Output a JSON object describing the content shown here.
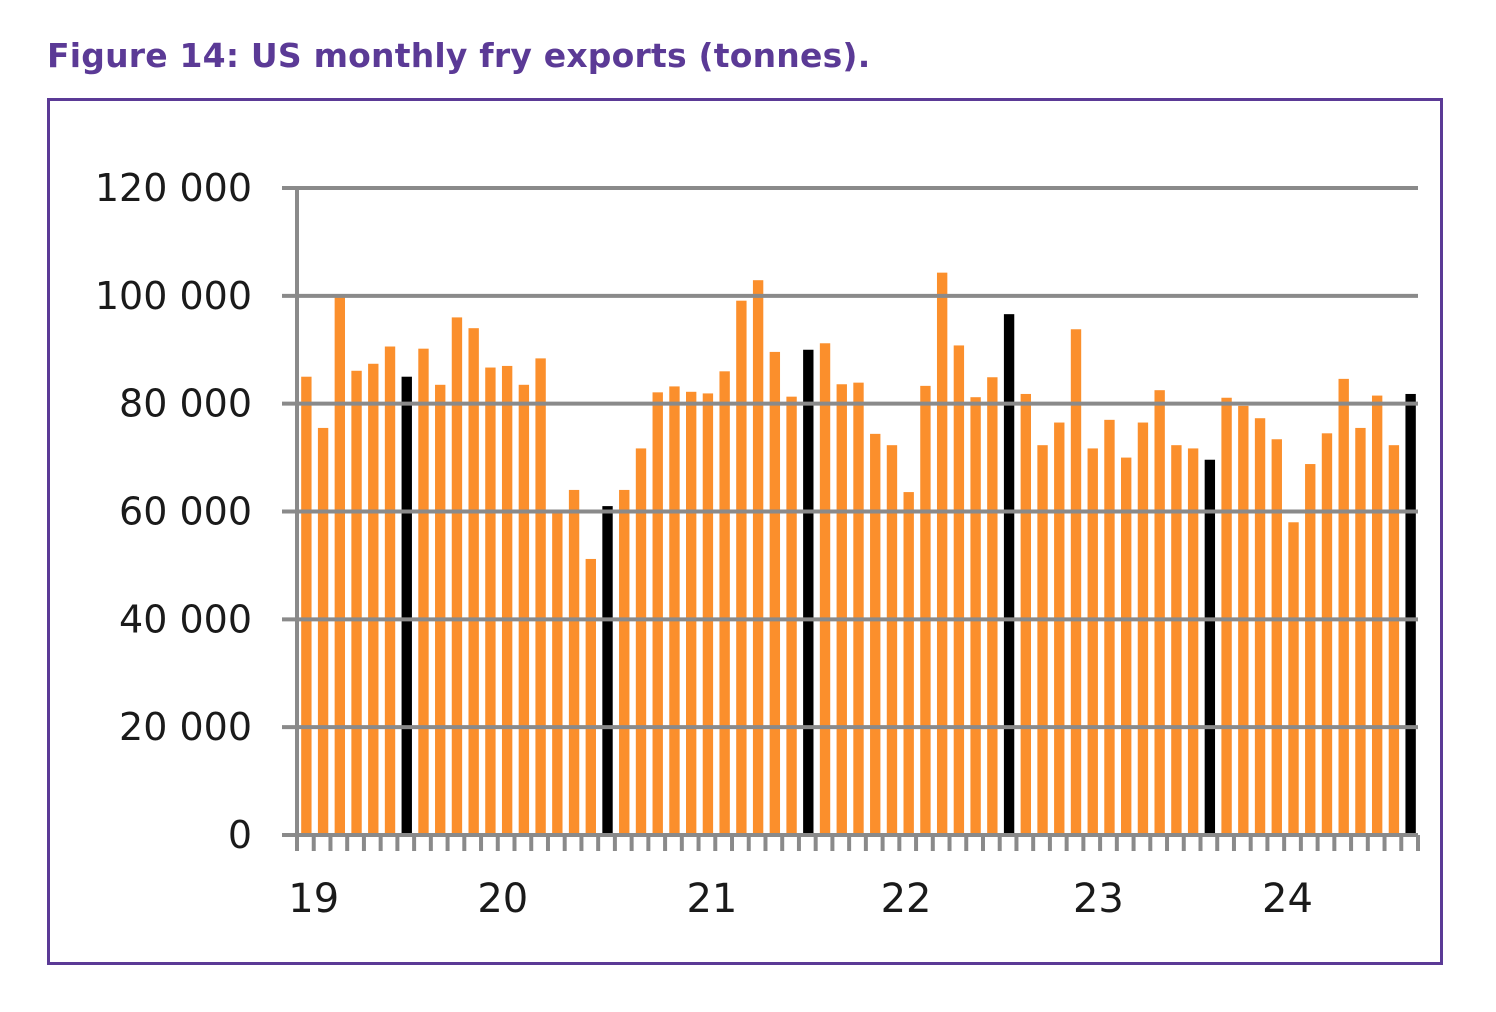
{
  "figure": {
    "title": "Figure 14: US monthly fry exports (tonnes).",
    "frame_color": "#5b3a96"
  },
  "chart_data": {
    "type": "bar",
    "title": "Figure 14: US monthly fry exports (tonnes).",
    "xlabel": "",
    "ylabel": "",
    "ylim": [
      0,
      120000
    ],
    "yticks": [
      0,
      20000,
      40000,
      60000,
      80000,
      100000,
      120000
    ],
    "ytick_labels": [
      "0",
      "20 000",
      "40 000",
      "60 000",
      "80 000",
      "100 000",
      "120 000"
    ],
    "grid": true,
    "legend": "none",
    "colors": {
      "default": "#fb8f2c",
      "highlight": "#000000",
      "grid": "#8a8a8a",
      "axis": "#8a8a8a"
    },
    "x_tick_labels": [
      {
        "label": "19",
        "at_bar": 0.5
      },
      {
        "label": "20",
        "at_bar": 11.8
      },
      {
        "label": "21",
        "at_bar": 24.3
      },
      {
        "label": "22",
        "at_bar": 35.9
      },
      {
        "label": "23",
        "at_bar": 47.4
      },
      {
        "label": "24",
        "at_bar": 58.7
      }
    ],
    "highlight_rule": "every 12th bar starting at bar 7 shown in black",
    "values": [
      85000,
      75500,
      100000,
      86100,
      87400,
      90600,
      85000,
      90200,
      83500,
      96000,
      94000,
      86700,
      87000,
      83500,
      88400,
      60000,
      64000,
      51200,
      61000,
      64000,
      71700,
      82100,
      83200,
      82200,
      81900,
      86000,
      99100,
      102900,
      89600,
      81300,
      90000,
      91200,
      83600,
      83900,
      74400,
      72300,
      63600,
      83300,
      104300,
      90800,
      81200,
      84900,
      96600,
      81800,
      72300,
      76500,
      93800,
      71700,
      77000,
      70000,
      76500,
      82500,
      72300,
      71700,
      69600,
      81100,
      79600,
      77300,
      73400,
      58000,
      68800,
      74500,
      84600,
      75500,
      81500,
      72300,
      81800
    ],
    "highlight_indices": [
      6,
      18,
      30,
      42,
      54,
      66
    ]
  }
}
